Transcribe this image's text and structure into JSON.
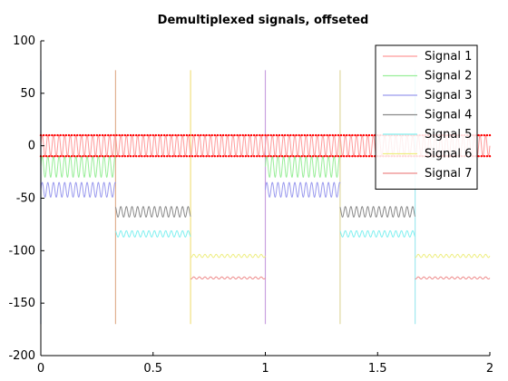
{
  "chart_data": {
    "type": "line",
    "title": "Demultiplexed signals, offseted",
    "xlabel": "",
    "ylabel": "",
    "xlim": [
      0,
      2
    ],
    "ylim": [
      -200,
      100
    ],
    "xticks": [
      "0",
      "0.5",
      "1",
      "1.5",
      "2"
    ],
    "xtick_values": [
      0,
      0.5,
      1,
      1.5,
      2
    ],
    "yticks": [
      "100",
      "50",
      "0",
      "-50",
      "-100",
      "-150",
      "-200"
    ],
    "ytick_values": [
      100,
      50,
      0,
      -50,
      -100,
      -150,
      -200
    ],
    "grid": false,
    "legend_position": "top-right",
    "series": [
      {
        "name": "Signal 1",
        "color": "#ff9a9a",
        "offset": 0,
        "amplitude": 10,
        "segments": [
          [
            0,
            2
          ]
        ],
        "oscillation": "fast",
        "transition_x": [
          0,
          2
        ]
      },
      {
        "name": "Signal 2",
        "color": "#99ee99",
        "offset": -20,
        "amplitude": 10,
        "segments": [
          [
            0,
            0.333
          ],
          [
            1,
            1.333
          ]
        ],
        "oscillation": "fast",
        "transition_x": [
          0,
          0.333,
          1,
          1.333
        ]
      },
      {
        "name": "Signal 3",
        "color": "#9a9aee",
        "offset": -42,
        "amplitude": 7,
        "segments": [
          [
            0,
            0.333
          ],
          [
            1,
            1.333
          ]
        ],
        "oscillation": "fast",
        "transition_x": [
          0,
          0.333,
          1,
          1.333
        ]
      },
      {
        "name": "Signal 4",
        "color": "#8a8a8a",
        "offset": -63,
        "amplitude": 5,
        "segments": [
          [
            0.333,
            0.667
          ],
          [
            1.333,
            1.667
          ]
        ],
        "oscillation": "fast",
        "transition_x": [
          0.333,
          0.667,
          1.333,
          1.667
        ]
      },
      {
        "name": "Signal 5",
        "color": "#80f0f0",
        "offset": -84,
        "amplitude": 3,
        "segments": [
          [
            0.333,
            0.667
          ],
          [
            1.333,
            1.667
          ]
        ],
        "oscillation": "fast",
        "transition_x": [
          0.333,
          0.667,
          1.333,
          1.667
        ]
      },
      {
        "name": "Signal 6",
        "color": "#eeee80",
        "offset": -105,
        "amplitude": 1.5,
        "segments": [
          [
            0.667,
            1
          ],
          [
            1.667,
            2
          ]
        ],
        "oscillation": "fast",
        "transition_x": [
          0.667,
          1,
          1.667,
          2
        ]
      },
      {
        "name": "Signal 7",
        "color": "#ee8a8a",
        "offset": -126,
        "amplitude": 1,
        "segments": [
          [
            0.667,
            1
          ],
          [
            1.667,
            2
          ]
        ],
        "oscillation": "fast",
        "transition_x": [
          0.667,
          1,
          1.667,
          2
        ]
      }
    ],
    "vertical_lines": [
      {
        "x": 0,
        "color": "#7fa8d8",
        "y_range": [
          -170,
          72
        ]
      },
      {
        "x": 0.333,
        "color": "#e0b090",
        "y_range": [
          -170,
          72
        ]
      },
      {
        "x": 0.667,
        "color": "#f0e080",
        "y_range": [
          -170,
          72
        ]
      },
      {
        "x": 1,
        "color": "#c8a0e0",
        "y_range": [
          -170,
          72
        ]
      },
      {
        "x": 1.333,
        "color": "#e0d8a0",
        "y_range": [
          -170,
          72
        ]
      },
      {
        "x": 1.667,
        "color": "#a0e8f0",
        "y_range": [
          -170,
          72
        ]
      }
    ],
    "marker_series": {
      "color": "#ff0000",
      "offset": 0,
      "amplitude": 10
    }
  }
}
